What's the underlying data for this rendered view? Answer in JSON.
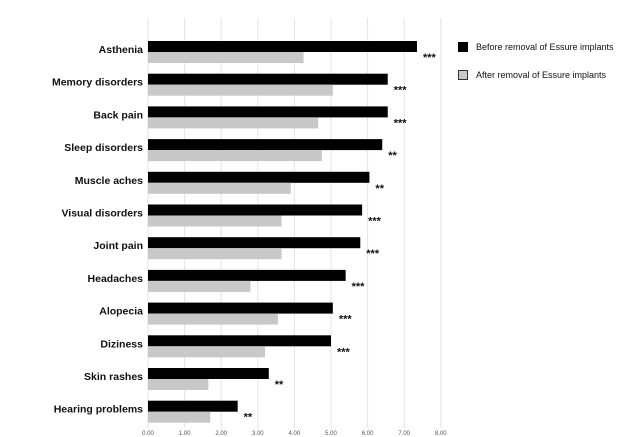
{
  "chart_data": {
    "type": "bar",
    "orientation": "horizontal",
    "categories": [
      "Asthenia",
      "Memory disorders",
      "Back pain",
      "Sleep disorders",
      "Muscle aches",
      "Visual disorders",
      "Joint pain",
      "Headaches",
      "Alopecia",
      "Diziness",
      "Skin rashes",
      "Hearing problems"
    ],
    "series": [
      {
        "name": "Before removal of Essure implants",
        "color": "#000000",
        "values": [
          7.35,
          6.55,
          6.55,
          6.4,
          6.05,
          5.85,
          5.8,
          5.4,
          5.05,
          5.0,
          3.3,
          2.45
        ]
      },
      {
        "name": "After removal of Essure implants",
        "color": "#c8c8c8",
        "values": [
          4.25,
          5.05,
          4.65,
          4.75,
          3.9,
          3.65,
          3.65,
          2.8,
          3.55,
          3.2,
          1.65,
          1.7
        ]
      }
    ],
    "significance": [
      "***",
      "***",
      "***",
      "**",
      "**",
      "***",
      "***",
      "***",
      "***",
      "***",
      "**",
      "**"
    ],
    "xticks": [
      "0.00",
      "1.00",
      "2.00",
      "3.00",
      "4.00",
      "5.00",
      "6.00",
      "7.00",
      "8.00"
    ],
    "xlim": [
      0,
      8
    ],
    "grid": "vertical",
    "legend_position": "top-right"
  }
}
